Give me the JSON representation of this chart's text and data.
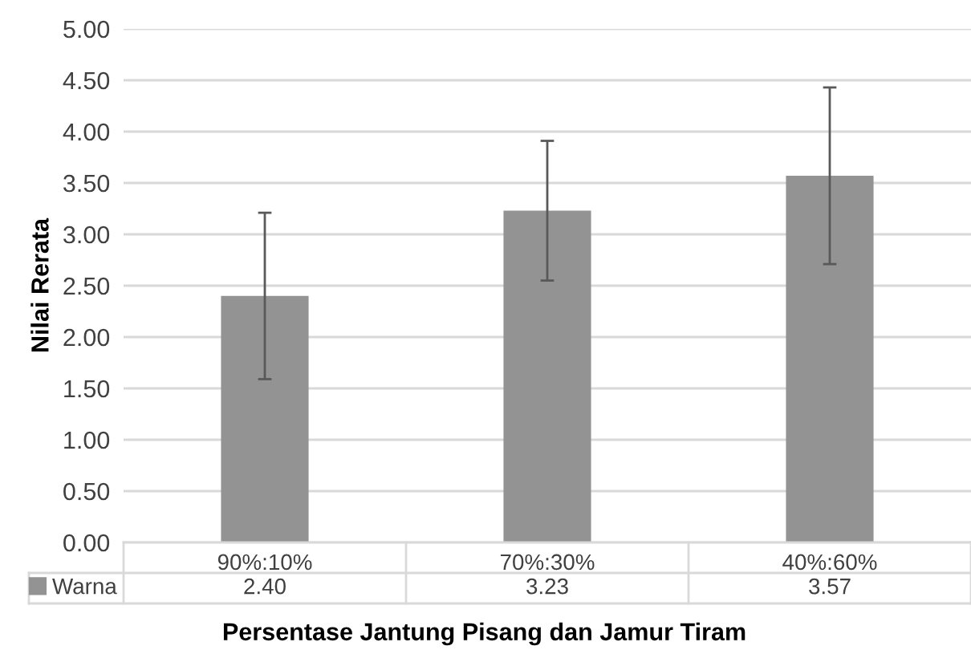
{
  "chart_data": {
    "type": "bar",
    "xlabel": "Persentase Jantung Pisang dan Jamur Tiram",
    "ylabel": "Nilai Rerata",
    "categories": [
      "90%:10%",
      "70%:30%",
      "40%:60%"
    ],
    "series": [
      {
        "name": "Warna",
        "color": "#939393",
        "values": [
          2.4,
          3.23,
          3.57
        ],
        "errors": [
          0.81,
          0.68,
          0.86
        ],
        "value_labels": [
          "2.40",
          "3.23",
          "3.57"
        ]
      }
    ],
    "ylim": [
      0,
      5
    ],
    "yticks": [
      {
        "value": 0,
        "label": "0.00"
      },
      {
        "value": 0.5,
        "label": "0.50"
      },
      {
        "value": 1,
        "label": "1.00"
      },
      {
        "value": 1.5,
        "label": "1.50"
      },
      {
        "value": 2,
        "label": "2.00"
      },
      {
        "value": 2.5,
        "label": "2.50"
      },
      {
        "value": 3,
        "label": "3.00"
      },
      {
        "value": 3.5,
        "label": "3.50"
      },
      {
        "value": 4,
        "label": "4.00"
      },
      {
        "value": 4.5,
        "label": "4.50"
      },
      {
        "value": 5,
        "label": "5.00"
      }
    ],
    "grid": "y",
    "legend": "bottom left"
  }
}
